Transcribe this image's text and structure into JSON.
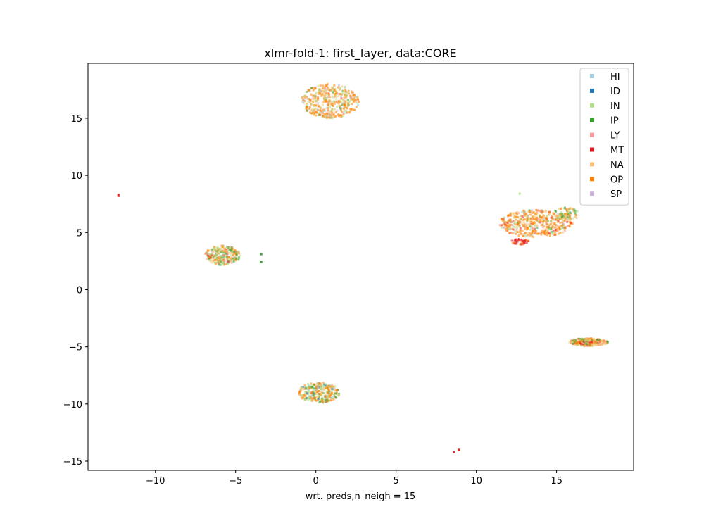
{
  "chart_data": {
    "type": "scatter",
    "title": "xlmr-fold-1: first_layer, data:CORE",
    "xlabel": "wrt. preds,n_neigh = 15",
    "ylabel": "",
    "xlim": [
      -14.2,
      19.8
    ],
    "ylim": [
      -15.8,
      19.8
    ],
    "xticks": [
      -10,
      -5,
      0,
      5,
      10,
      15
    ],
    "yticks": [
      -15,
      -10,
      -5,
      0,
      5,
      10,
      15
    ],
    "xtick_labels": [
      "−10",
      "−5",
      "0",
      "5",
      "10",
      "15"
    ],
    "ytick_labels": [
      "−15",
      "−10",
      "−5",
      "0",
      "5",
      "10",
      "15"
    ],
    "grid": false,
    "legend_position": "top-right",
    "series": [
      {
        "name": "HI",
        "color": "#a6cee3"
      },
      {
        "name": "ID",
        "color": "#1f78b4"
      },
      {
        "name": "IN",
        "color": "#b2df8a"
      },
      {
        "name": "IP",
        "color": "#33a02c"
      },
      {
        "name": "LY",
        "color": "#fb9a99"
      },
      {
        "name": "MT",
        "color": "#e31a1c"
      },
      {
        "name": "NA",
        "color": "#fdbf6f"
      },
      {
        "name": "OP",
        "color": "#ff7f00"
      },
      {
        "name": "SP",
        "color": "#cab2d6"
      }
    ],
    "clusters": [
      {
        "cx": 0.9,
        "cy": 16.5,
        "rx": 1.8,
        "ry": 1.5,
        "n": 420,
        "mix": {
          "OP": 0.5,
          "IN": 0.18,
          "NA": 0.15,
          "HI": 0.06,
          "SP": 0.05,
          "LY": 0.03,
          "IP": 0.03
        }
      },
      {
        "cx": 13.7,
        "cy": 5.8,
        "rx": 2.3,
        "ry": 1.2,
        "n": 460,
        "mix": {
          "OP": 0.5,
          "NA": 0.16,
          "IN": 0.12,
          "LY": 0.08,
          "MT": 0.06,
          "IP": 0.04,
          "HI": 0.02,
          "SP": 0.02
        }
      },
      {
        "cx": 15.6,
        "cy": 6.6,
        "rx": 0.8,
        "ry": 0.6,
        "n": 80,
        "mix": {
          "IN": 0.4,
          "OP": 0.3,
          "NA": 0.15,
          "IP": 0.15
        }
      },
      {
        "cx": 12.7,
        "cy": 4.2,
        "rx": 0.6,
        "ry": 0.25,
        "n": 40,
        "mix": {
          "MT": 0.8,
          "OP": 0.2
        }
      },
      {
        "cx": -5.8,
        "cy": 3.0,
        "rx": 1.1,
        "ry": 0.85,
        "n": 260,
        "mix": {
          "IN": 0.3,
          "OP": 0.22,
          "NA": 0.22,
          "IP": 0.14,
          "LY": 0.06,
          "MT": 0.06
        }
      },
      {
        "cx": 0.2,
        "cy": -9.0,
        "rx": 1.3,
        "ry": 0.9,
        "n": 300,
        "mix": {
          "IN": 0.35,
          "OP": 0.3,
          "NA": 0.12,
          "IP": 0.12,
          "HI": 0.06,
          "ID": 0.05
        }
      },
      {
        "cx": 17.0,
        "cy": -4.6,
        "rx": 1.2,
        "ry": 0.35,
        "n": 260,
        "mix": {
          "NA": 0.35,
          "OP": 0.25,
          "IN": 0.12,
          "IP": 0.1,
          "MT": 0.1,
          "LY": 0.08
        }
      }
    ],
    "outliers": [
      {
        "x": -12.3,
        "y": 8.3,
        "series": "MT"
      },
      {
        "x": -12.3,
        "y": 8.2,
        "series": "MT"
      },
      {
        "x": -3.4,
        "y": 3.1,
        "series": "IP"
      },
      {
        "x": -3.4,
        "y": 2.4,
        "series": "IP"
      },
      {
        "x": 12.7,
        "y": 8.4,
        "series": "IN"
      },
      {
        "x": 8.9,
        "y": -14.0,
        "series": "MT"
      },
      {
        "x": 8.6,
        "y": -14.2,
        "series": "MT"
      }
    ]
  }
}
